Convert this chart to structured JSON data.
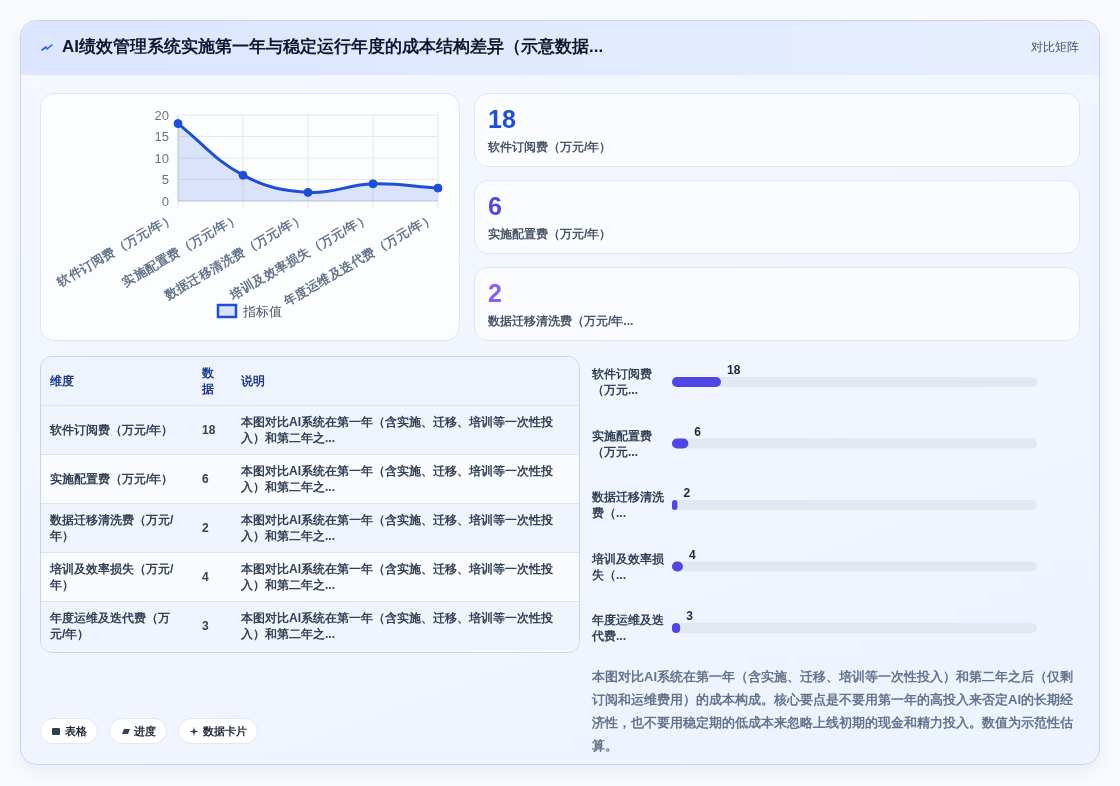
{
  "chart_data": [
    {
      "type": "other",
      "title": "AI绩效管理系统实施第一年与稳定运行年度的成本结构差异（示意数据...",
      "subtitle": "对比矩阵"
    },
    {
      "type": "area",
      "categories": [
        "软件订阅费（万元/年）",
        "实施配置费（万元/年）",
        "数据迁移清洗费（万元/年）",
        "培训及效率损失（万元/年）",
        "年度运维及迭代费（万元/年）"
      ],
      "series": [
        {
          "name": "指标值",
          "color": "#1d4ed8",
          "values": [
            18,
            6,
            2,
            4,
            3
          ]
        }
      ],
      "ylim": [
        0,
        20
      ],
      "yticks": [
        0,
        5,
        10,
        15,
        20
      ],
      "grid": true,
      "legend": "bottom",
      "marker": "circle"
    },
    {
      "type": "other",
      "categories": [
        "软件订阅费（万元/年）",
        "实施配置费（万元/年）",
        "数据迁移清洗费（万元/年..."
      ],
      "values": [
        18,
        6,
        2
      ],
      "data_labels": true
    },
    {
      "type": "other",
      "categories": [
        "软件订阅费（万元/年）",
        "实施配置费（万元/年）",
        "数据迁移清洗费（万元/年）",
        "培训及效率损失（万元/年）",
        "年度运维及迭代费（万元/年）"
      ],
      "values": [
        18,
        6,
        2,
        4,
        3
      ],
      "data_labels": true,
      "annotations": [
        "维度",
        "数据",
        "说明",
        "本图对比AI系统在第一年（含实施、迁移、培训等一次性投入）和第二年之...",
        "本图对比AI系统在第一年（含实施、迁移、培训等一次性投入）和第二年之...",
        "本图对比AI系统在第一年（含实施、迁移、培训等一次性投入）和第二年之...",
        "本图对比AI系统在第一年（含实施、迁移、培训等一次性投入）和第二年之...",
        "本图对比AI系统在第一年（含实施、迁移、培训等一次性投入）和第二年之..."
      ]
    },
    {
      "type": "bar",
      "orientation": "horizontal",
      "categories": [
        "软件订阅费（万元...",
        "实施配置费（万元...",
        "数据迁移清洗费（...",
        "培训及效率损失（...",
        "年度运维及迭代费..."
      ],
      "values": [
        18,
        6,
        2,
        4,
        3
      ],
      "color": "#4f46e5",
      "data_labels": true
    },
    {
      "type": "other",
      "annotations": [
        "表格",
        "进度",
        "数据卡片",
        "本图对比AI系统在第一年（含实施、迁移、培训等一次性投入）和第二年之后（仅剩订阅和运维费用）的成本构成。核心要点是不要用第一年的高投入来否定AI的长期经济性，也不要用稳定期的低成本来忽略上线初期的现金和精力投入。数值为示范性估算。"
      ]
    }
  ]
}
